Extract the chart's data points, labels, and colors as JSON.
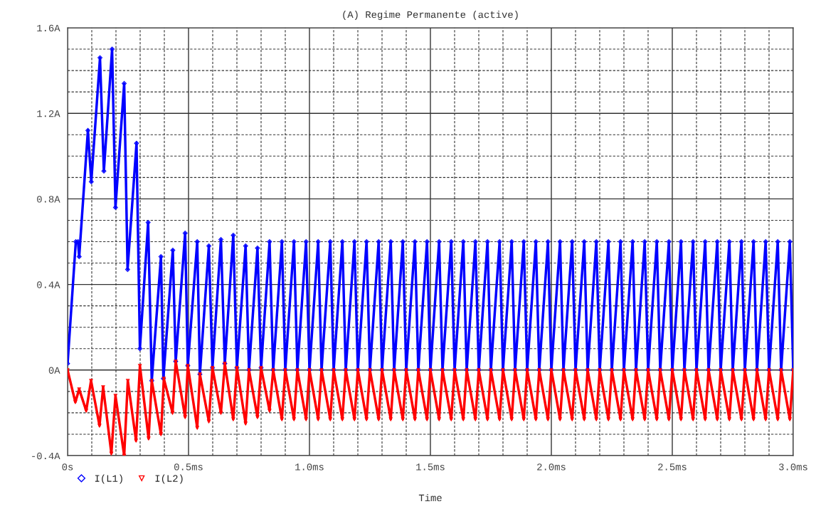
{
  "chart_data": {
    "type": "line",
    "title": "(A) Regime Permanente (active)",
    "xlabel": "Time",
    "xlim": [
      0,
      3.0
    ],
    "ylim": [
      -0.4,
      1.6
    ],
    "xticks": [
      {
        "value": 0,
        "label": "0s"
      },
      {
        "value": 0.1,
        "label": null
      },
      {
        "value": 0.2,
        "label": null
      },
      {
        "value": 0.3,
        "label": null
      },
      {
        "value": 0.4,
        "label": null
      },
      {
        "value": 0.5,
        "label": "0.5ms"
      },
      {
        "value": 0.6,
        "label": null
      },
      {
        "value": 0.7,
        "label": null
      },
      {
        "value": 0.8,
        "label": null
      },
      {
        "value": 0.9,
        "label": null
      },
      {
        "value": 1.0,
        "label": "1.0ms"
      },
      {
        "value": 1.1,
        "label": null
      },
      {
        "value": 1.2,
        "label": null
      },
      {
        "value": 1.3,
        "label": null
      },
      {
        "value": 1.4,
        "label": null
      },
      {
        "value": 1.5,
        "label": "1.5ms"
      },
      {
        "value": 1.6,
        "label": null
      },
      {
        "value": 1.7,
        "label": null
      },
      {
        "value": 1.8,
        "label": null
      },
      {
        "value": 1.9,
        "label": null
      },
      {
        "value": 2.0,
        "label": "2.0ms"
      },
      {
        "value": 2.1,
        "label": null
      },
      {
        "value": 2.2,
        "label": null
      },
      {
        "value": 2.3,
        "label": null
      },
      {
        "value": 2.4,
        "label": null
      },
      {
        "value": 2.5,
        "label": "2.5ms"
      },
      {
        "value": 2.6,
        "label": null
      },
      {
        "value": 2.7,
        "label": null
      },
      {
        "value": 2.8,
        "label": null
      },
      {
        "value": 2.9,
        "label": null
      },
      {
        "value": 3.0,
        "label": "3.0ms"
      }
    ],
    "yticks": [
      {
        "value": -0.4,
        "label": "-0.4A"
      },
      {
        "value": -0.3,
        "label": null
      },
      {
        "value": -0.2,
        "label": null
      },
      {
        "value": -0.1,
        "label": null
      },
      {
        "value": 0,
        "label": "0A"
      },
      {
        "value": 0.1,
        "label": null
      },
      {
        "value": 0.2,
        "label": null
      },
      {
        "value": 0.3,
        "label": null
      },
      {
        "value": 0.4,
        "label": "0.4A"
      },
      {
        "value": 0.5,
        "label": null
      },
      {
        "value": 0.6,
        "label": null
      },
      {
        "value": 0.7,
        "label": null
      },
      {
        "value": 0.8,
        "label": "0.8A"
      },
      {
        "value": 0.9,
        "label": null
      },
      {
        "value": 1.0,
        "label": null
      },
      {
        "value": 1.1,
        "label": null
      },
      {
        "value": 1.2,
        "label": "1.2A"
      },
      {
        "value": 1.3,
        "label": null
      },
      {
        "value": 1.4,
        "label": null
      },
      {
        "value": 1.5,
        "label": null
      },
      {
        "value": 1.6,
        "label": "1.6A"
      }
    ],
    "grid": true,
    "legend": "bottom left",
    "line_style": "solid",
    "series": [
      {
        "name": "I(L1)",
        "color": "#0000ff",
        "marker": "diamond",
        "x": [
          0,
          0.034,
          0.043,
          0.048,
          0.084,
          0.098,
          0.134,
          0.15,
          0.184,
          0.198,
          0.234,
          0.248,
          0.285,
          0.299,
          0.333,
          0.348,
          0.386,
          0.396,
          0.435,
          0.447,
          0.486,
          0.497,
          0.536,
          0.547,
          0.584,
          0.599,
          0.634,
          0.65,
          0.685,
          0.7,
          0.736,
          0.75,
          0.785,
          0.8,
          0.835,
          0.85,
          0.886,
          0.9,
          0.936,
          0.95,
          0.986,
          1.0,
          1.036,
          1.05,
          1.086,
          1.1,
          1.136,
          1.15,
          1.186,
          1.2,
          1.236,
          1.25,
          1.286,
          1.3,
          1.336,
          1.35,
          1.386,
          1.4,
          1.436,
          1.45,
          1.486,
          1.5,
          1.536,
          1.55,
          1.586,
          1.6,
          1.636,
          1.65,
          1.686,
          1.7,
          1.736,
          1.75,
          1.786,
          1.8,
          1.836,
          1.85,
          1.886,
          1.9,
          1.936,
          1.95,
          1.986,
          2.0,
          2.036,
          2.05,
          2.086,
          2.1,
          2.136,
          2.15,
          2.186,
          2.2,
          2.236,
          2.25,
          2.286,
          2.3,
          2.336,
          2.35,
          2.386,
          2.4,
          2.436,
          2.45,
          2.486,
          2.5,
          2.536,
          2.55,
          2.586,
          2.6,
          2.636,
          2.65,
          2.686,
          2.7,
          2.736,
          2.75,
          2.786,
          2.8,
          2.836,
          2.85,
          2.886,
          2.9,
          2.936,
          2.95,
          2.986,
          3.0
        ],
        "values": [
          0.03,
          0.6,
          0.6,
          0.53,
          1.12,
          0.88,
          1.46,
          0.93,
          1.5,
          0.76,
          1.34,
          0.47,
          1.06,
          0.1,
          0.69,
          -0.05,
          0.53,
          -0.04,
          0.56,
          0.04,
          0.64,
          0.02,
          0.6,
          -0.02,
          0.58,
          0.01,
          0.61,
          0.03,
          0.63,
          0.01,
          0.58,
          0.0,
          0.57,
          0.01,
          0.6,
          0,
          0.6,
          0,
          0.6,
          0,
          0.6,
          0,
          0.6,
          0,
          0.6,
          0,
          0.6,
          0,
          0.6,
          0,
          0.6,
          0,
          0.6,
          0,
          0.6,
          0,
          0.6,
          0,
          0.6,
          0,
          0.6,
          0,
          0.6,
          0,
          0.6,
          0,
          0.6,
          0,
          0.6,
          0,
          0.6,
          0,
          0.6,
          0,
          0.6,
          0,
          0.6,
          0,
          0.6,
          0,
          0.6,
          0,
          0.6,
          0,
          0.6,
          0,
          0.6,
          0,
          0.6,
          0,
          0.6,
          0,
          0.6,
          0,
          0.6,
          0,
          0.6,
          0,
          0.6,
          0,
          0.6,
          0,
          0.6,
          0,
          0.6,
          0,
          0.6,
          0,
          0.6,
          0,
          0.6,
          0,
          0.6,
          0,
          0.6,
          0,
          0.6,
          0,
          0.6,
          0,
          0.6,
          0
        ]
      },
      {
        "name": "I(L2)",
        "color": "#ff0000",
        "marker": "triangle",
        "x": [
          0,
          0.032,
          0.048,
          0.077,
          0.097,
          0.132,
          0.147,
          0.181,
          0.198,
          0.234,
          0.249,
          0.283,
          0.299,
          0.335,
          0.348,
          0.386,
          0.398,
          0.434,
          0.447,
          0.486,
          0.497,
          0.536,
          0.547,
          0.584,
          0.599,
          0.634,
          0.65,
          0.685,
          0.7,
          0.736,
          0.75,
          0.785,
          0.8,
          0.835,
          0.85,
          0.886,
          0.9,
          0.936,
          0.95,
          0.986,
          1.0,
          1.036,
          1.05,
          1.086,
          1.1,
          1.136,
          1.15,
          1.186,
          1.2,
          1.236,
          1.25,
          1.286,
          1.3,
          1.336,
          1.35,
          1.386,
          1.4,
          1.436,
          1.45,
          1.486,
          1.5,
          1.536,
          1.55,
          1.586,
          1.6,
          1.636,
          1.65,
          1.686,
          1.7,
          1.736,
          1.75,
          1.786,
          1.8,
          1.836,
          1.85,
          1.886,
          1.9,
          1.936,
          1.95,
          1.986,
          2.0,
          2.036,
          2.05,
          2.086,
          2.1,
          2.136,
          2.15,
          2.186,
          2.2,
          2.236,
          2.25,
          2.286,
          2.3,
          2.336,
          2.35,
          2.386,
          2.4,
          2.436,
          2.45,
          2.486,
          2.5,
          2.536,
          2.55,
          2.586,
          2.6,
          2.636,
          2.65,
          2.686,
          2.7,
          2.736,
          2.75,
          2.786,
          2.8,
          2.836,
          2.85,
          2.886,
          2.9,
          2.936,
          2.95,
          2.986,
          3.0
        ],
        "values": [
          0,
          -0.15,
          -0.09,
          -0.19,
          -0.05,
          -0.26,
          -0.08,
          -0.39,
          -0.12,
          -0.4,
          -0.05,
          -0.33,
          0.02,
          -0.32,
          -0.05,
          -0.3,
          -0.04,
          -0.2,
          0.04,
          -0.22,
          0.02,
          -0.27,
          -0.02,
          -0.24,
          0.01,
          -0.2,
          0.03,
          -0.23,
          0.01,
          -0.25,
          0.0,
          -0.22,
          0.01,
          -0.19,
          0,
          -0.23,
          0,
          -0.23,
          0,
          -0.23,
          0,
          -0.23,
          0,
          -0.23,
          0,
          -0.23,
          0,
          -0.23,
          0,
          -0.23,
          0,
          -0.23,
          0,
          -0.23,
          0,
          -0.23,
          0,
          -0.23,
          0,
          -0.23,
          0,
          -0.23,
          0,
          -0.23,
          0,
          -0.23,
          0,
          -0.23,
          0,
          -0.23,
          0,
          -0.23,
          0,
          -0.23,
          0,
          -0.23,
          0,
          -0.23,
          0,
          -0.23,
          0,
          -0.23,
          0,
          -0.23,
          0,
          -0.23,
          0,
          -0.23,
          0,
          -0.23,
          0,
          -0.23,
          0,
          -0.23,
          0,
          -0.23,
          0,
          -0.23,
          0,
          -0.23,
          0,
          -0.23,
          0,
          -0.23,
          0,
          -0.23,
          0,
          -0.23,
          0,
          -0.23,
          0,
          -0.23,
          0,
          -0.23,
          0,
          -0.23,
          0,
          -0.23,
          0,
          -0.23,
          0
        ]
      }
    ]
  }
}
